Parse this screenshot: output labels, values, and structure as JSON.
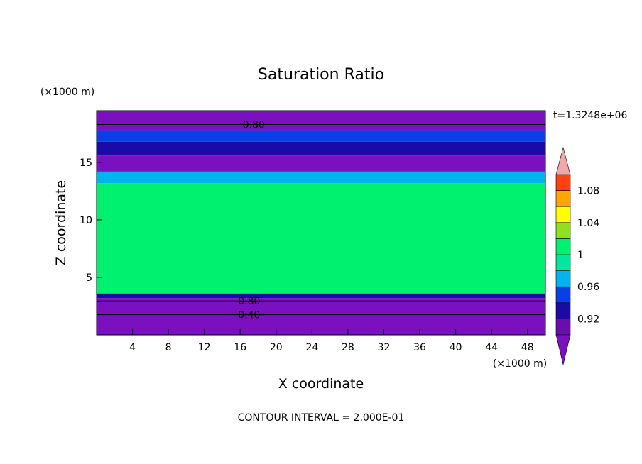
{
  "chart_data": {
    "type": "heatmap",
    "title": "Saturation Ratio",
    "xlabel": "X coordinate",
    "ylabel": "Z coordinate",
    "x_unit": "(×1000 m)",
    "y_unit": "(×1000 m)",
    "time_label": "t=1.3248e+06",
    "footer": "CONTOUR INTERVAL = 2.000E-01",
    "xlim": [
      0,
      50
    ],
    "ylim": [
      0,
      19.5
    ],
    "x_ticks": [
      "4",
      "8",
      "12",
      "16",
      "20",
      "24",
      "28",
      "32",
      "36",
      "40",
      "44",
      "48"
    ],
    "y_ticks": [
      "5",
      "10",
      "15"
    ],
    "colorbar": {
      "levels": [
        0.9,
        0.92,
        0.94,
        0.96,
        0.98,
        1.0,
        1.02,
        1.04,
        1.06,
        1.08,
        1.1
      ],
      "tick_labels": [
        "0.92",
        "0.96",
        "1",
        "1.04",
        "1.08"
      ],
      "tick_values": [
        0.92,
        0.96,
        1.0,
        1.04,
        1.08
      ],
      "colors": [
        "#6a0dad",
        "#1a0aa8",
        "#0a3ee6",
        "#00b4f0",
        "#00e8a0",
        "#00f070",
        "#90e020",
        "#ffff00",
        "#ffa500",
        "#ff4010",
        "#ff1010"
      ],
      "under_color": "#7a10c0",
      "over_color": "#f0a8a8"
    },
    "contour_labels": [
      {
        "text": "0.80",
        "x": 17.5,
        "y": 18.3
      },
      {
        "text": "0.80",
        "x": 17.0,
        "y": 2.95
      },
      {
        "text": "0.40",
        "x": 17.0,
        "y": 1.75
      }
    ],
    "bands": [
      {
        "z0": 0,
        "z1": 3.2,
        "value": 0.5
      },
      {
        "z0": 3.2,
        "z1": 3.6,
        "value": 0.92
      },
      {
        "z0": 3.6,
        "z1": 13.2,
        "value": 1.0
      },
      {
        "z0": 13.2,
        "z1": 14.2,
        "value": 0.97
      },
      {
        "z0": 14.2,
        "z1": 15.6,
        "value": 0.85
      },
      {
        "z0": 15.6,
        "z1": 16.8,
        "value": 0.93
      },
      {
        "z0": 16.8,
        "z1": 17.8,
        "value": 0.95
      },
      {
        "z0": 17.8,
        "z1": 19.5,
        "value": 0.6
      }
    ]
  }
}
